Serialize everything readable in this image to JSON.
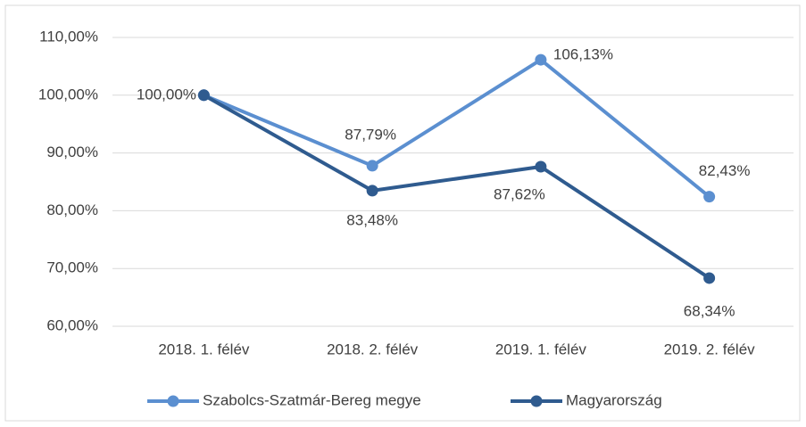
{
  "chart_data": {
    "type": "line",
    "categories": [
      "2018. 1. félév",
      "2018. 2. félév",
      "2019. 1. félév",
      "2019. 2. félév"
    ],
    "series": [
      {
        "name": "Szabolcs-Szatmár-Bereg megye",
        "color": "#5b8fd0",
        "values": [
          100,
          87.79,
          106.13,
          82.43
        ],
        "value_labels": [
          "100,00%",
          "87,79%",
          "106,13%",
          "82,43%"
        ]
      },
      {
        "name": "Magyarország",
        "color": "#2f5b8f",
        "values": [
          100,
          83.48,
          87.62,
          68.34
        ],
        "value_labels": [
          null,
          "83,48%",
          "87,62%",
          "68,34%"
        ]
      }
    ],
    "ylim": [
      60,
      110
    ],
    "yticks": [
      {
        "value": 60,
        "label": "60,00%"
      },
      {
        "value": 70,
        "label": "70,00%"
      },
      {
        "value": 80,
        "label": "80,00%"
      },
      {
        "value": 90,
        "label": "90,00%"
      },
      {
        "value": 100,
        "label": "100,00%"
      },
      {
        "value": 110,
        "label": "110,00%"
      }
    ],
    "grid": true,
    "legend": "bottom"
  }
}
